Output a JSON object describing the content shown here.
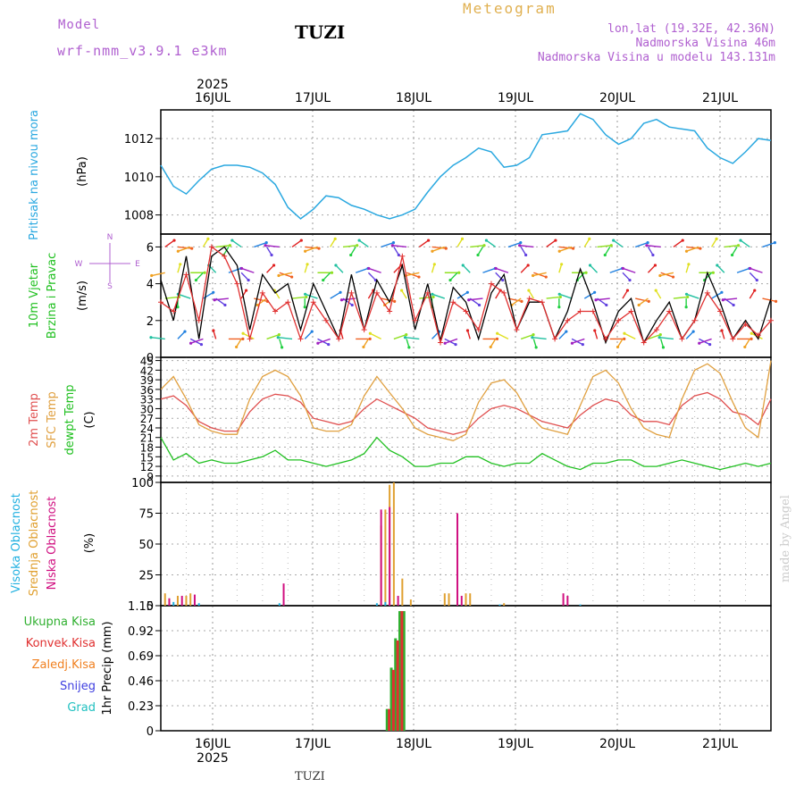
{
  "header": {
    "model_label": "Model",
    "model_name": "wrf-nmm_v3.9.1 e3km",
    "title": "TUZI",
    "meteogram_label": "Meteogram",
    "lonlat": "lon,lat (19.32E, 42.36N)",
    "elevation": "Nadmorska Visina 46m",
    "model_elevation": "Nadmorska Visina u modelu 143.131m",
    "footer_title": "TUZI",
    "watermark": "made by Angel"
  },
  "time_axis": {
    "year": "2025",
    "day_labels": [
      "16JUL",
      "17JUL",
      "18JUL",
      "19JUL",
      "20JUL",
      "21JUL"
    ]
  },
  "colors": {
    "pressure": "#2aa8e0",
    "wind_gust": "#000000",
    "wind_speed": "#e03030",
    "temp_2m": "#e05050",
    "temp_sfc": "#e0a040",
    "dewpoint": "#20c020",
    "cloud_high": "#20b0e0",
    "cloud_mid": "#e0a030",
    "cloud_low": "#d01080",
    "precip_total": "#30b030",
    "precip_conv": "#e03030",
    "precip_frozen": "#f08020",
    "precip_snow": "#4040e0",
    "precip_grad": "#20c0c0",
    "compass": "#b060d0"
  },
  "chart_data": [
    {
      "type": "line",
      "title": "Pritisak na nivou mora",
      "ylabel": "(hPa)",
      "ylim": [
        1007,
        1013.5
      ],
      "ticks": [
        1008,
        1010,
        1012
      ],
      "x_unit": "hours from 2025-07-15 12UTC (0 = left axis edge, 144 = right edge)",
      "series": [
        {
          "name": "Pressure (hPa)",
          "color_key": "pressure",
          "x": [
            0,
            3,
            6,
            9,
            12,
            15,
            18,
            21,
            24,
            27,
            30,
            33,
            36,
            39,
            42,
            45,
            48,
            51,
            54,
            57,
            60,
            63,
            66,
            69,
            72,
            75,
            78,
            81,
            84,
            87,
            90,
            93,
            96,
            99,
            102,
            105,
            108,
            111,
            114,
            117,
            120,
            123,
            126,
            129,
            132,
            135,
            138,
            141,
            144
          ],
          "y": [
            1010.6,
            1009.5,
            1009.1,
            1009.8,
            1010.4,
            1010.6,
            1010.6,
            1010.5,
            1010.2,
            1009.6,
            1008.4,
            1007.8,
            1008.3,
            1009.0,
            1008.9,
            1008.5,
            1008.3,
            1008.0,
            1007.8,
            1008.0,
            1008.3,
            1009.2,
            1010.0,
            1010.6,
            1011.0,
            1011.5,
            1011.3,
            1010.5,
            1010.6,
            1011.0,
            1012.2,
            1012.3,
            1012.4,
            1013.3,
            1013.0,
            1012.2,
            1011.7,
            1012.0,
            1012.8,
            1013.0,
            1012.6,
            1012.5,
            1012.4,
            1011.5,
            1011.0,
            1010.7,
            1011.3,
            1012.0,
            1011.9
          ]
        }
      ]
    },
    {
      "type": "line",
      "title": "10m Vjetar Brzina i Pravac",
      "ylabel": "(m/s)",
      "ylim": [
        0,
        6.7
      ],
      "ticks": [
        0,
        2,
        4,
        6
      ],
      "compass_labels": {
        "north": "N",
        "south": "S",
        "west": "W",
        "east": "E"
      },
      "series": [
        {
          "name": "Gust (m/s)",
          "color_key": "wind_gust",
          "x": [
            0,
            3,
            6,
            9,
            12,
            15,
            18,
            21,
            24,
            27,
            30,
            33,
            36,
            39,
            42,
            45,
            48,
            51,
            54,
            57,
            60,
            63,
            66,
            69,
            72,
            75,
            78,
            81,
            84,
            87,
            90,
            93,
            96,
            99,
            102,
            105,
            108,
            111,
            114,
            117,
            120,
            123,
            126,
            129,
            132,
            135,
            138,
            141,
            144
          ],
          "y": [
            4.2,
            2.0,
            5.5,
            1.0,
            5.5,
            6.0,
            5.0,
            1.5,
            4.5,
            3.5,
            4.0,
            1.5,
            4.0,
            2.5,
            1.0,
            4.5,
            1.5,
            4.2,
            3.0,
            5.0,
            1.5,
            4.0,
            0.9,
            3.8,
            3.0,
            1.0,
            3.5,
            4.5,
            1.5,
            3.0,
            3.0,
            1.0,
            2.5,
            4.8,
            3.0,
            0.8,
            2.5,
            3.2,
            0.8,
            2.0,
            3.0,
            1.0,
            2.0,
            4.6,
            3.0,
            1.0,
            2.0,
            1.0,
            3.2
          ]
        },
        {
          "name": "Speed (m/s)",
          "color_key": "wind_speed",
          "x": [
            0,
            3,
            6,
            9,
            12,
            15,
            18,
            21,
            24,
            27,
            30,
            33,
            36,
            39,
            42,
            45,
            48,
            51,
            54,
            57,
            60,
            63,
            66,
            69,
            72,
            75,
            78,
            81,
            84,
            87,
            90,
            93,
            96,
            99,
            102,
            105,
            108,
            111,
            114,
            117,
            120,
            123,
            126,
            129,
            132,
            135,
            138,
            141,
            144
          ],
          "y": [
            3.0,
            2.5,
            4.5,
            2.0,
            6.0,
            5.5,
            4.0,
            1.0,
            3.5,
            2.5,
            3.0,
            1.0,
            3.0,
            2.0,
            1.0,
            3.5,
            1.5,
            3.5,
            2.5,
            5.5,
            2.0,
            3.5,
            0.8,
            3.0,
            2.5,
            1.5,
            4.0,
            3.5,
            1.5,
            3.2,
            3.0,
            1.0,
            2.0,
            2.5,
            2.5,
            1.0,
            2.0,
            2.5,
            0.8,
            1.5,
            2.5,
            1.0,
            2.0,
            3.5,
            2.5,
            1.0,
            1.8,
            1.2,
            2.0
          ]
        }
      ]
    },
    {
      "type": "line",
      "title": "2m Temp / SFC Temp / dewpt Temp",
      "ylabel": "(C)",
      "ylim": [
        7,
        46
      ],
      "ticks": [
        9,
        12,
        15,
        18,
        21,
        24,
        27,
        30,
        33,
        36,
        39,
        42,
        45
      ],
      "series_labels": [
        "2m Temp",
        "SFC Temp",
        "dewpt Temp"
      ],
      "series": [
        {
          "name": "2m Temp",
          "color_key": "temp_2m",
          "x": [
            0,
            3,
            6,
            9,
            12,
            15,
            18,
            21,
            24,
            27,
            30,
            33,
            36,
            39,
            42,
            45,
            48,
            51,
            54,
            57,
            60,
            63,
            66,
            69,
            72,
            75,
            78,
            81,
            84,
            87,
            90,
            93,
            96,
            99,
            102,
            105,
            108,
            111,
            114,
            117,
            120,
            123,
            126,
            129,
            132,
            135,
            138,
            141,
            144
          ],
          "y": [
            33,
            34,
            31,
            26,
            24,
            23,
            23,
            29,
            33,
            34.5,
            34,
            32,
            27,
            26,
            25,
            26,
            30,
            33,
            31,
            29,
            27,
            24,
            23,
            22,
            23,
            27,
            30,
            31,
            30,
            28,
            26,
            25,
            24,
            28,
            31,
            33,
            32,
            28,
            26,
            26,
            25,
            31,
            34,
            35,
            33,
            29,
            28,
            25,
            33
          ]
        },
        {
          "name": "SFC Temp",
          "color_key": "temp_sfc",
          "x": [
            0,
            3,
            6,
            9,
            12,
            15,
            18,
            21,
            24,
            27,
            30,
            33,
            36,
            39,
            42,
            45,
            48,
            51,
            54,
            57,
            60,
            63,
            66,
            69,
            72,
            75,
            78,
            81,
            84,
            87,
            90,
            93,
            96,
            99,
            102,
            105,
            108,
            111,
            114,
            117,
            120,
            123,
            126,
            129,
            132,
            135,
            138,
            141,
            144
          ],
          "y": [
            36,
            40,
            33,
            25,
            23,
            22,
            22,
            33,
            40,
            42,
            40,
            34,
            24,
            23,
            23,
            25,
            34,
            40,
            35,
            30,
            24,
            22,
            21,
            20,
            22,
            32,
            38,
            39,
            35,
            28,
            24,
            23,
            22,
            31,
            40,
            42,
            38,
            30,
            24,
            22,
            21,
            33,
            42,
            44,
            41,
            32,
            24,
            21,
            45
          ]
        },
        {
          "name": "dewpt Temp",
          "color_key": "dewpoint",
          "x": [
            0,
            3,
            6,
            9,
            12,
            15,
            18,
            21,
            24,
            27,
            30,
            33,
            36,
            39,
            42,
            45,
            48,
            51,
            54,
            57,
            60,
            63,
            66,
            69,
            72,
            75,
            78,
            81,
            84,
            87,
            90,
            93,
            96,
            99,
            102,
            105,
            108,
            111,
            114,
            117,
            120,
            123,
            126,
            129,
            132,
            135,
            138,
            141,
            144
          ],
          "y": [
            21,
            14,
            16,
            13,
            14,
            13,
            13,
            14,
            15,
            17,
            14,
            14,
            13,
            12,
            13,
            14,
            16,
            21,
            17,
            15,
            12,
            12,
            13,
            13,
            15,
            15,
            13,
            12,
            13,
            13,
            16,
            14,
            12,
            11,
            13,
            13,
            14,
            14,
            12,
            12,
            13,
            14,
            13,
            12,
            11,
            12,
            13,
            12,
            13
          ]
        }
      ]
    },
    {
      "type": "bar",
      "title": "Visoka / Srednja / Niska Oblacnost",
      "ylabel": "(%)",
      "ylim": [
        0,
        100
      ],
      "ticks": [
        0,
        25,
        50,
        75,
        100
      ],
      "series_labels": [
        "Visoka Oblacnost",
        "Srednja Oblacnost",
        "Niska Oblacnost"
      ],
      "series": [
        {
          "name": "Srednja Oblacnost",
          "color_key": "cloud_mid",
          "x": [
            1,
            4,
            6,
            7,
            52,
            53,
            54,
            55,
            57,
            59,
            67,
            68,
            70,
            72,
            73,
            81
          ],
          "y": [
            10,
            8,
            8,
            10,
            65,
            78,
            98,
            100,
            22,
            5,
            10,
            10,
            8,
            10,
            10,
            2
          ]
        },
        {
          "name": "Niska Oblacnost",
          "color_key": "cloud_low",
          "x": [
            2,
            5,
            8,
            29,
            52,
            54,
            56,
            70,
            71,
            95,
            96
          ],
          "y": [
            6,
            8,
            9,
            18,
            78,
            80,
            8,
            75,
            8,
            10,
            8
          ]
        },
        {
          "name": "Visoka Oblacnost",
          "color_key": "cloud_high",
          "x": [
            3,
            9,
            28,
            51,
            53,
            80,
            99
          ],
          "y": [
            3,
            2,
            2,
            2,
            3,
            1,
            1
          ]
        }
      ]
    },
    {
      "type": "bar",
      "title": "1hr Precip",
      "ylabel": "1hr Precip (mm)",
      "ylim": [
        0,
        1.15
      ],
      "ticks": [
        0,
        0.23,
        0.46,
        0.69,
        0.92,
        1.15
      ],
      "legend": [
        "Ukupna Kisa",
        "Konvek.Kisa",
        "Zaledj.Kisa",
        "Snijeg",
        "Grad"
      ],
      "series": [
        {
          "name": "Ukupna Kisa",
          "color_key": "precip_total",
          "x": [
            53.4,
            54.4,
            55.4,
            56.4,
            57.4
          ],
          "y": [
            0.2,
            0.58,
            0.85,
            1.1,
            1.1
          ]
        },
        {
          "name": "Konvek.Kisa",
          "color_key": "precip_conv",
          "x": [
            53.9,
            54.9,
            55.9,
            56.9
          ],
          "y": [
            0.2,
            0.56,
            0.83,
            1.1
          ]
        }
      ]
    }
  ]
}
